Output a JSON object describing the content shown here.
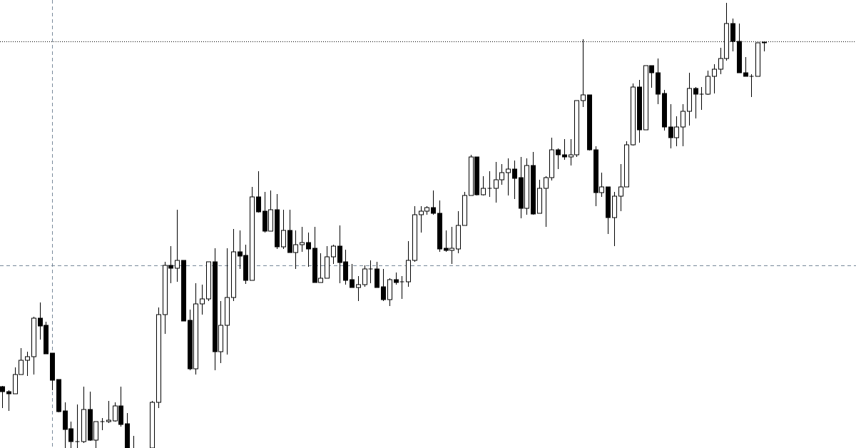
{
  "chart_data": {
    "type": "candlestick",
    "title": "",
    "xlabel": "",
    "ylabel": "",
    "ylim": [
      0,
      62.8
    ],
    "grid": false,
    "legend": "none",
    "colors": {
      "background": "#ffffff",
      "bull_body": "#ffffff",
      "bear_body": "#000000",
      "outline": "#000000",
      "crosshair": "#778899",
      "level_line": "#000000"
    },
    "level_line": {
      "price": 57.0,
      "style": "dotted"
    },
    "crosshair": {
      "price": 25.6,
      "candle_index": 8,
      "style": "dashed"
    },
    "ohlc": [
      [
        8.6,
        8.7,
        5.6,
        7.9
      ],
      [
        7.9,
        8.1,
        5.2,
        7.6
      ],
      [
        7.6,
        11.3,
        7.6,
        10.3
      ],
      [
        10.3,
        14.0,
        10.3,
        12.3
      ],
      [
        12.3,
        13.5,
        10.1,
        12.8
      ],
      [
        12.8,
        18.4,
        10.3,
        18.2
      ],
      [
        18.2,
        20.4,
        15.2,
        17.1
      ],
      [
        17.2,
        17.7,
        13.2,
        13.2
      ],
      [
        13.3,
        13.3,
        8.1,
        9.5
      ],
      [
        9.6,
        9.6,
        5.0,
        5.1
      ],
      [
        5.2,
        6.4,
        -1.2,
        2.6
      ],
      [
        2.7,
        3.7,
        -0.4,
        0.9
      ],
      [
        0.9,
        6.1,
        -0.4,
        0.9
      ],
      [
        0.9,
        8.6,
        0.7,
        5.4
      ],
      [
        5.4,
        7.9,
        1.0,
        1.1
      ],
      [
        1.1,
        3.7,
        -0.2,
        3.7
      ],
      [
        3.7,
        4.2,
        2.5,
        3.7
      ],
      [
        3.7,
        6.6,
        3.5,
        3.9
      ],
      [
        3.8,
        6.4,
        3.7,
        5.9
      ],
      [
        5.9,
        8.6,
        3.0,
        3.3
      ],
      [
        3.4,
        4.9,
        -2.0,
        -0.8
      ],
      [
        -0.8,
        1.7,
        -3.5,
        -2.5
      ],
      [
        -2.5,
        -1.0,
        -4.5,
        -1.5
      ],
      [
        -1.5,
        -0.5,
        -3.0,
        -1.0
      ],
      [
        -1.0,
        6.6,
        -1.8,
        6.4
      ],
      [
        6.4,
        19.7,
        5.6,
        18.7
      ],
      [
        18.7,
        26.1,
        16.0,
        25.6
      ],
      [
        25.6,
        28.3,
        23.1,
        25.2
      ],
      [
        25.2,
        33.4,
        23.3,
        26.3
      ],
      [
        26.3,
        26.3,
        17.8,
        17.8
      ],
      [
        17.9,
        19.4,
        10.9,
        11.1
      ],
      [
        11.1,
        23.1,
        10.3,
        20.2
      ],
      [
        20.2,
        22.9,
        18.7,
        20.9
      ],
      [
        20.9,
        26.1,
        20.6,
        26.1
      ],
      [
        26.1,
        28.0,
        10.9,
        13.5
      ],
      [
        13.5,
        20.6,
        11.9,
        17.2
      ],
      [
        17.2,
        28.0,
        13.1,
        21.1
      ],
      [
        21.1,
        30.7,
        20.6,
        27.5
      ],
      [
        27.5,
        30.5,
        25.1,
        26.9
      ],
      [
        27.0,
        28.5,
        23.0,
        23.5
      ],
      [
        23.5,
        36.6,
        23.5,
        35.2
      ],
      [
        35.2,
        38.8,
        33.0,
        33.1
      ],
      [
        33.2,
        35.9,
        30.2,
        30.4
      ],
      [
        30.4,
        36.1,
        30.4,
        33.4
      ],
      [
        33.4,
        35.6,
        27.9,
        28.2
      ],
      [
        28.2,
        33.4,
        27.9,
        30.5
      ],
      [
        30.5,
        33.4,
        27.4,
        27.4
      ],
      [
        27.4,
        30.5,
        25.1,
        28.5
      ],
      [
        28.5,
        31.0,
        27.5,
        28.8
      ],
      [
        28.8,
        30.2,
        25.4,
        27.9
      ],
      [
        28.0,
        31.0,
        23.2,
        23.2
      ],
      [
        23.2,
        27.3,
        23.2,
        23.8
      ],
      [
        23.8,
        28.3,
        23.8,
        26.8
      ],
      [
        26.8,
        28.5,
        25.8,
        28.3
      ],
      [
        28.3,
        31.2,
        23.1,
        26.0
      ],
      [
        26.1,
        27.8,
        22.9,
        23.5
      ],
      [
        23.6,
        25.8,
        22.5,
        22.5
      ],
      [
        22.5,
        24.1,
        20.6,
        22.9
      ],
      [
        22.9,
        25.6,
        22.6,
        25.1
      ],
      [
        25.1,
        26.3,
        23.1,
        25.1
      ],
      [
        25.1,
        26.1,
        22.5,
        22.5
      ],
      [
        22.6,
        25.1,
        20.6,
        20.8
      ],
      [
        20.8,
        23.8,
        19.9,
        23.6
      ],
      [
        23.6,
        24.6,
        22.9,
        23.2
      ],
      [
        23.3,
        24.1,
        20.9,
        23.3
      ],
      [
        23.3,
        29.0,
        22.6,
        26.3
      ],
      [
        26.3,
        33.9,
        26.1,
        32.7
      ],
      [
        32.7,
        33.9,
        30.2,
        33.2
      ],
      [
        33.2,
        33.9,
        32.7,
        33.7
      ],
      [
        33.7,
        36.1,
        32.7,
        32.9
      ],
      [
        32.9,
        34.7,
        27.5,
        27.9
      ],
      [
        28.0,
        30.5,
        27.5,
        27.7
      ],
      [
        27.7,
        31.0,
        25.8,
        28.0
      ],
      [
        27.9,
        33.2,
        27.3,
        31.2
      ],
      [
        31.2,
        35.9,
        31.2,
        35.4
      ],
      [
        35.4,
        41.1,
        35.4,
        40.8
      ],
      [
        40.8,
        40.8,
        35.4,
        35.5
      ],
      [
        35.5,
        38.1,
        35.4,
        36.4
      ],
      [
        36.4,
        38.8,
        35.2,
        36.4
      ],
      [
        36.4,
        40.1,
        34.4,
        37.6
      ],
      [
        37.6,
        39.8,
        36.9,
        38.6
      ],
      [
        38.6,
        40.6,
        35.4,
        39.1
      ],
      [
        39.1,
        40.3,
        34.9,
        37.8
      ],
      [
        37.9,
        40.8,
        32.2,
        33.6
      ],
      [
        33.6,
        40.6,
        32.7,
        39.6
      ],
      [
        39.6,
        41.5,
        32.7,
        32.8
      ],
      [
        32.9,
        37.6,
        32.9,
        36.4
      ],
      [
        36.4,
        38.1,
        31.0,
        37.9
      ],
      [
        37.9,
        43.5,
        37.5,
        41.8
      ],
      [
        41.8,
        42.0,
        39.1,
        41.1
      ],
      [
        41.1,
        43.3,
        40.4,
        40.8
      ],
      [
        40.8,
        43.3,
        39.6,
        41.1
      ],
      [
        41.1,
        48.7,
        40.8,
        48.7
      ],
      [
        48.7,
        57.3,
        47.8,
        49.5
      ],
      [
        49.5,
        49.5,
        41.7,
        41.8
      ],
      [
        41.8,
        42.3,
        33.9,
        35.8
      ],
      [
        35.8,
        38.6,
        35.2,
        36.6
      ],
      [
        36.6,
        36.6,
        30.0,
        32.3
      ],
      [
        32.3,
        35.9,
        28.3,
        35.3
      ],
      [
        35.3,
        39.8,
        33.2,
        36.6
      ],
      [
        36.6,
        43.0,
        36.6,
        42.5
      ],
      [
        42.5,
        51.1,
        42.4,
        50.6
      ],
      [
        50.6,
        51.6,
        42.8,
        44.6
      ],
      [
        44.6,
        53.6,
        44.6,
        53.6
      ],
      [
        53.6,
        53.6,
        50.5,
        52.6
      ],
      [
        52.6,
        54.6,
        48.2,
        49.6
      ],
      [
        49.7,
        50.2,
        44.5,
        45.0
      ],
      [
        45.0,
        48.2,
        42.0,
        43.5
      ],
      [
        43.5,
        46.5,
        42.3,
        45.0
      ],
      [
        45.0,
        48.2,
        42.3,
        47.2
      ],
      [
        47.2,
        52.6,
        45.2,
        50.4
      ],
      [
        50.4,
        50.6,
        46.2,
        49.6
      ],
      [
        49.6,
        50.6,
        47.4,
        49.6
      ],
      [
        49.6,
        52.9,
        49.5,
        52.1
      ],
      [
        52.1,
        53.8,
        49.7,
        53.1
      ],
      [
        53.1,
        56.1,
        52.4,
        54.6
      ],
      [
        54.6,
        62.4,
        54.3,
        59.5
      ],
      [
        59.5,
        60.2,
        55.6,
        57.0
      ],
      [
        57.0,
        59.5,
        52.6,
        52.6
      ],
      [
        52.6,
        54.8,
        52.1,
        52.1
      ],
      [
        52.1,
        52.4,
        49.2,
        52.1
      ],
      [
        52.1,
        56.8,
        52.1,
        56.8
      ],
      [
        56.8,
        56.9,
        55.6,
        56.9
      ]
    ]
  }
}
